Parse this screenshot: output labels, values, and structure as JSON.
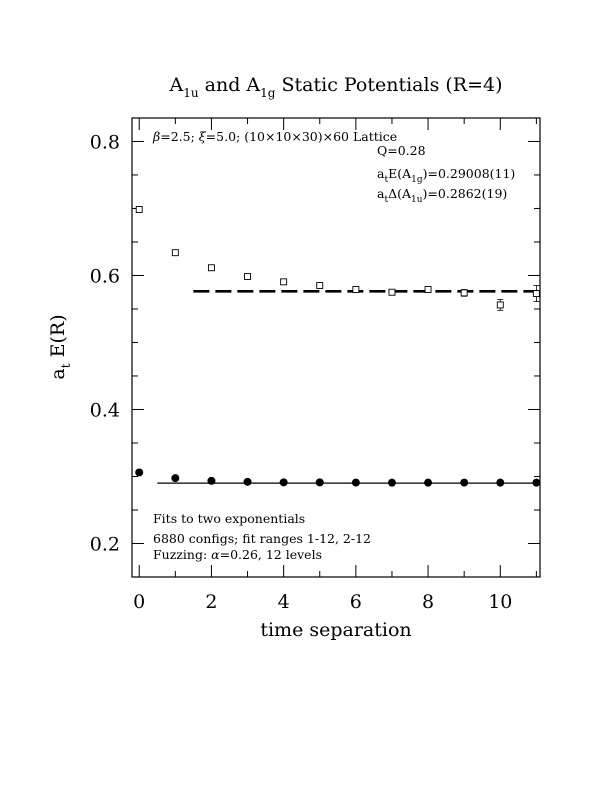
{
  "chart_data": {
    "type": "scatter",
    "title": {
      "pre1": "A",
      "sub1": "1u",
      "mid": " and A",
      "sub2": "1g",
      "post": " Static Potentials (R=4)"
    },
    "xlabel": "time separation",
    "ylabel": {
      "main": "a",
      "sub": "t",
      "post": " E(R)"
    },
    "xlim": [
      -0.2,
      11.1
    ],
    "ylim": [
      0.15,
      0.835
    ],
    "xticks": [
      0,
      2,
      4,
      6,
      8,
      10
    ],
    "yticks": [
      0.2,
      0.4,
      0.6,
      0.8
    ],
    "xtick_labels": [
      "0",
      "2",
      "4",
      "6",
      "8",
      "10"
    ],
    "ytick_labels": [
      "0.2",
      "0.4",
      "0.6",
      "0.8"
    ],
    "xminor": [
      1,
      3,
      5,
      7,
      9,
      11
    ],
    "yminor": [
      0.25,
      0.3,
      0.35,
      0.45,
      0.5,
      0.55,
      0.65,
      0.7,
      0.75
    ],
    "series": [
      {
        "marker": "filled-circle",
        "x": [
          0,
          1,
          2,
          3,
          4,
          5,
          6,
          7,
          8,
          9,
          10,
          11
        ],
        "y": [
          0.306,
          0.2975,
          0.2935,
          0.292,
          0.2913,
          0.2912,
          0.2909,
          0.2908,
          0.2908,
          0.2909,
          0.2908,
          0.2908
        ],
        "err": [
          0.001,
          0.001,
          0.001,
          0.001,
          0.001,
          0.001,
          0.001,
          0.001,
          0.001,
          0.001,
          0.001,
          0.002
        ]
      },
      {
        "marker": "open-square",
        "x": [
          0,
          1,
          2,
          3,
          4,
          5,
          6,
          7,
          8,
          9,
          10,
          11
        ],
        "y": [
          0.6985,
          0.634,
          0.6115,
          0.5985,
          0.5905,
          0.585,
          0.579,
          0.575,
          0.579,
          0.574,
          0.556,
          0.573
        ],
        "err": [
          0.001,
          0.001,
          0.001,
          0.001,
          0.002,
          0.002,
          0.002,
          0.003,
          0.003,
          0.005,
          0.008,
          0.012
        ]
      }
    ],
    "fit_lines": [
      {
        "style": "solid",
        "x": [
          0.5,
          11.1
        ],
        "y": [
          0.29008,
          0.29008
        ]
      },
      {
        "style": "dashed",
        "x": [
          1.5,
          11.1
        ],
        "y": [
          0.5763,
          0.5763
        ]
      }
    ],
    "annotations": {
      "lattice": {
        "beta": "β",
        "a": "=2.5; ",
        "xi": "ξ",
        "b": "=5.0; (10×10×30)×60 Lattice"
      },
      "q": "Q=0.28",
      "energy": {
        "a": "a",
        "t": "t",
        "b": "E(A",
        "sub": "1g",
        "c": ")=0.29008(11)"
      },
      "delta": {
        "a": "a",
        "t": "t",
        "b": "Δ(A",
        "sub": "1u",
        "c": ")=0.2862(19)"
      },
      "fits": "Fits to two exponentials",
      "configs": "6880 configs; fit ranges 1-12, 2-12",
      "fuzzing": {
        "a": "Fuzzing: ",
        "alpha": "α",
        "b": "=0.26, 12 levels"
      }
    }
  }
}
